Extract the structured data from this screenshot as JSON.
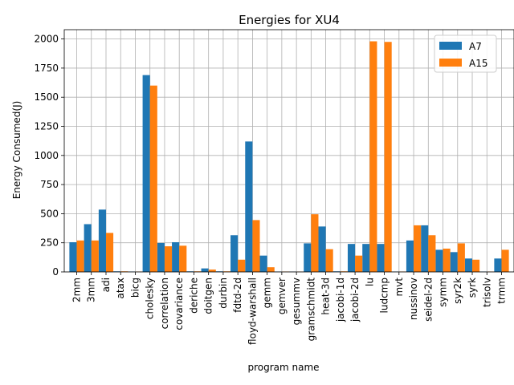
{
  "chart_data": {
    "type": "bar",
    "title": "Energies for XU4",
    "xlabel": "program name",
    "ylabel": "Energy Consumed(J)",
    "ylim": [
      0,
      2080
    ],
    "yticks": [
      0,
      250,
      500,
      750,
      1000,
      1250,
      1500,
      1750,
      2000
    ],
    "grid": true,
    "legend_position": "top-right",
    "categories": [
      "2mm",
      "3mm",
      "adi",
      "atax",
      "bicg",
      "cholesky",
      "correlation",
      "covariance",
      "deriche",
      "doitgen",
      "durbin",
      "fdtd-2d",
      "floyd-warshall",
      "gemm",
      "gemver",
      "gesummv",
      "gramschmidt",
      "heat-3d",
      "jacobi-1d",
      "jacobi-2d",
      "lu",
      "ludcmp",
      "mvt",
      "nussinov",
      "seidel-2d",
      "symm",
      "syr2k",
      "syrk",
      "trisolv",
      "trmm"
    ],
    "series": [
      {
        "name": "A7",
        "color": "#1f77b4",
        "values": [
          255,
          410,
          535,
          5,
          3,
          1690,
          248,
          255,
          5,
          30,
          5,
          315,
          1120,
          140,
          3,
          2,
          245,
          390,
          5,
          240,
          240,
          240,
          3,
          270,
          400,
          190,
          170,
          115,
          3,
          115
        ]
      },
      {
        "name": "A15",
        "color": "#ff7f0e",
        "values": [
          270,
          270,
          335,
          5,
          3,
          1600,
          220,
          225,
          5,
          20,
          5,
          105,
          445,
          40,
          3,
          2,
          495,
          195,
          5,
          140,
          1980,
          1975,
          3,
          400,
          315,
          200,
          245,
          105,
          3,
          190
        ]
      }
    ]
  }
}
